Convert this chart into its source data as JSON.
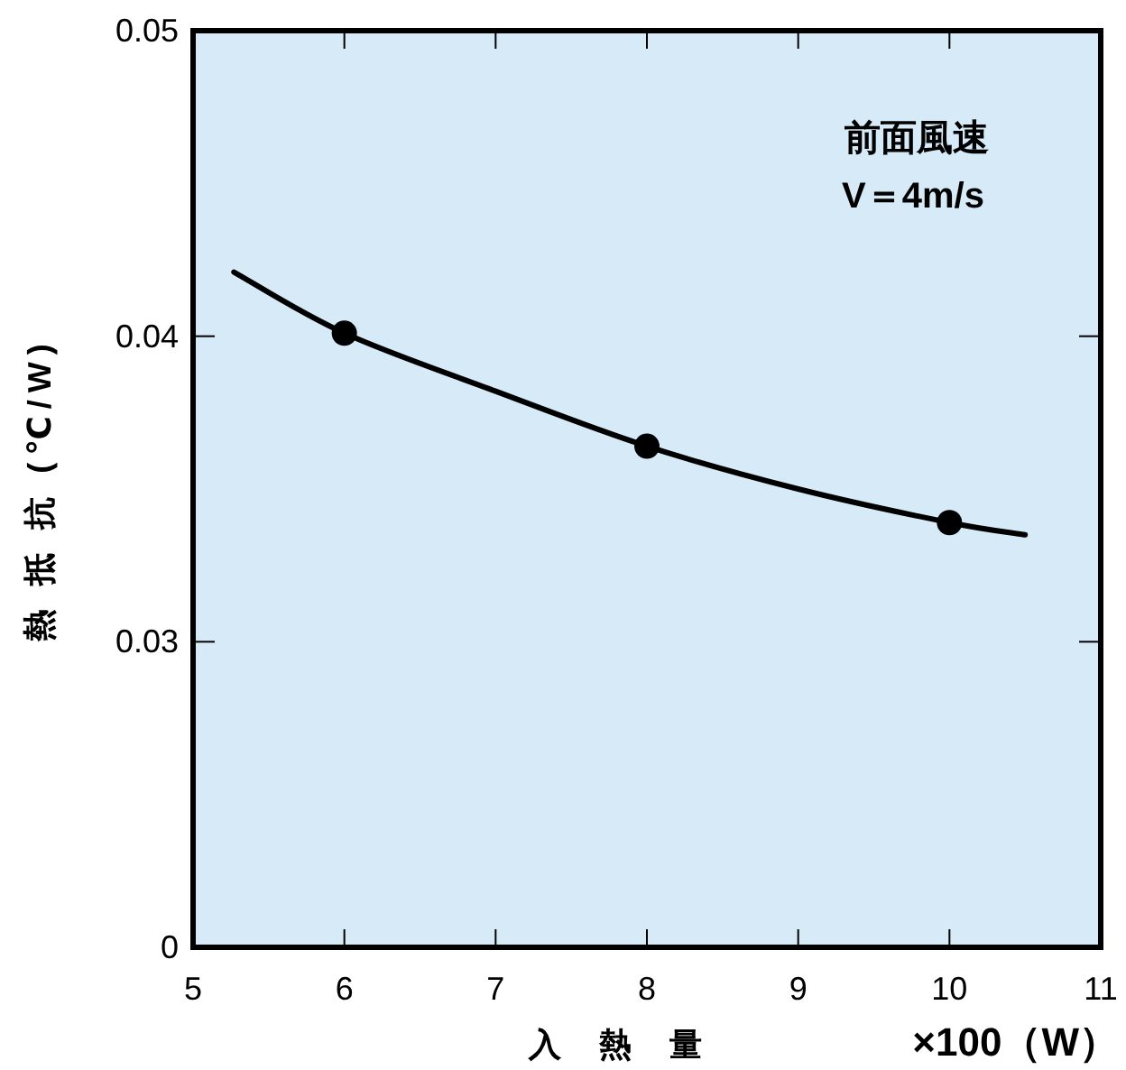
{
  "chart_data": {
    "type": "line",
    "xlabel": "入 熱 量",
    "ylabel": "熱 抵 抗 (℃/W)",
    "annotations": [
      "前面風速",
      "V＝4m/s",
      "×100（W）"
    ],
    "xlim": [
      5,
      11
    ],
    "xticks": [
      5,
      6,
      7,
      8,
      9,
      10,
      11
    ],
    "ylim": [
      0.02,
      0.05
    ],
    "yticks": [
      {
        "value": 0.02,
        "label": "0"
      },
      0.03,
      0.04,
      0.05
    ],
    "series": [
      {
        "color": "#000000",
        "marker": "none",
        "x": [
          5.27,
          6,
          7,
          8,
          9,
          10,
          10.5
        ],
        "values": [
          0.0421,
          0.0401,
          0.0382,
          0.0364,
          0.035,
          0.0339,
          0.0335
        ]
      },
      {
        "type": "scatter",
        "color": "#000000",
        "marker": "circle",
        "x": [
          6,
          8,
          10
        ],
        "values": [
          0.0401,
          0.0364,
          0.0339
        ]
      }
    ]
  }
}
